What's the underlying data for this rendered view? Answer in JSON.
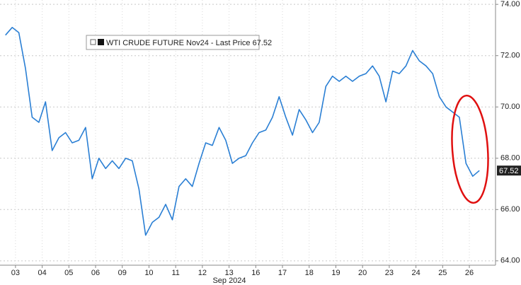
{
  "chart_data": {
    "type": "line",
    "legend": "WTI CRUDE FUTURE Nov24 - Last Price",
    "last_price": 67.52,
    "x_label": "Sep 2024",
    "x": [
      -0.375,
      -0.125,
      0.125,
      0.375,
      0.625,
      0.875,
      1.125,
      1.375,
      1.625,
      1.875,
      2.125,
      2.375,
      2.625,
      2.875,
      3.125,
      3.375,
      3.625,
      3.875,
      4.125,
      4.375,
      4.625,
      4.875,
      5.125,
      5.375,
      5.625,
      5.875,
      6.125,
      6.375,
      6.625,
      6.875,
      7.125,
      7.375,
      7.625,
      7.875,
      8.125,
      8.375,
      8.625,
      8.875,
      9.125,
      9.375,
      9.625,
      9.875,
      10.125,
      10.375,
      10.625,
      10.875,
      11.125,
      11.375,
      11.625,
      11.875,
      12.125,
      12.375,
      12.625,
      12.875,
      13.125,
      13.375,
      13.625,
      13.875,
      14.125,
      14.375,
      14.625,
      14.875,
      15.125,
      15.375,
      15.625,
      15.875,
      16.125,
      16.375,
      16.625,
      16.875,
      17.125,
      17.375
    ],
    "series": [
      {
        "name": "WTI CRUDE FUTURE Nov24",
        "color": "#2a7fd4",
        "values": [
          72.8,
          73.1,
          72.9,
          71.5,
          69.6,
          69.4,
          70.2,
          68.3,
          68.8,
          69.0,
          68.6,
          68.7,
          69.2,
          67.2,
          68.0,
          67.6,
          67.9,
          67.6,
          68.0,
          67.9,
          66.8,
          65.0,
          65.5,
          65.7,
          66.2,
          65.6,
          66.9,
          67.2,
          66.9,
          67.8,
          68.6,
          68.5,
          69.2,
          68.7,
          67.8,
          68.0,
          68.1,
          68.6,
          69.0,
          69.1,
          69.6,
          70.4,
          69.6,
          68.9,
          69.9,
          69.5,
          69.0,
          69.4,
          70.8,
          71.2,
          71.0,
          71.2,
          71.0,
          71.2,
          71.3,
          71.6,
          71.2,
          70.2,
          71.4,
          71.3,
          71.6,
          72.2,
          71.8,
          71.6,
          71.3,
          70.4,
          70.0,
          69.8,
          69.6,
          67.8,
          67.3,
          67.52
        ]
      }
    ],
    "xlim": [
      -0.58,
      17.98
    ],
    "xticks": [
      {
        "value": 0,
        "label": "03"
      },
      {
        "value": 1,
        "label": "04"
      },
      {
        "value": 2,
        "label": "05"
      },
      {
        "value": 3,
        "label": "06"
      },
      {
        "value": 4,
        "label": "09"
      },
      {
        "value": 5,
        "label": "10"
      },
      {
        "value": 6,
        "label": "11"
      },
      {
        "value": 7,
        "label": "12"
      },
      {
        "value": 8,
        "label": "13"
      },
      {
        "value": 9,
        "label": "16"
      },
      {
        "value": 10,
        "label": "17"
      },
      {
        "value": 11,
        "label": "18"
      },
      {
        "value": 12,
        "label": "19"
      },
      {
        "value": 13,
        "label": "20"
      },
      {
        "value": 14,
        "label": "23"
      },
      {
        "value": 15,
        "label": "24"
      },
      {
        "value": 16,
        "label": "25"
      },
      {
        "value": 17,
        "label": "26"
      }
    ],
    "ylim": [
      63.83,
      74.17
    ],
    "yticks": [
      {
        "value": 64,
        "label": "64.00"
      },
      {
        "value": 66,
        "label": "66.00"
      },
      {
        "value": 68,
        "label": "68.00"
      },
      {
        "value": 70,
        "label": "70.00"
      },
      {
        "value": 72,
        "label": "72.00"
      },
      {
        "value": 74,
        "label": "74.00"
      }
    ],
    "grid": true
  }
}
